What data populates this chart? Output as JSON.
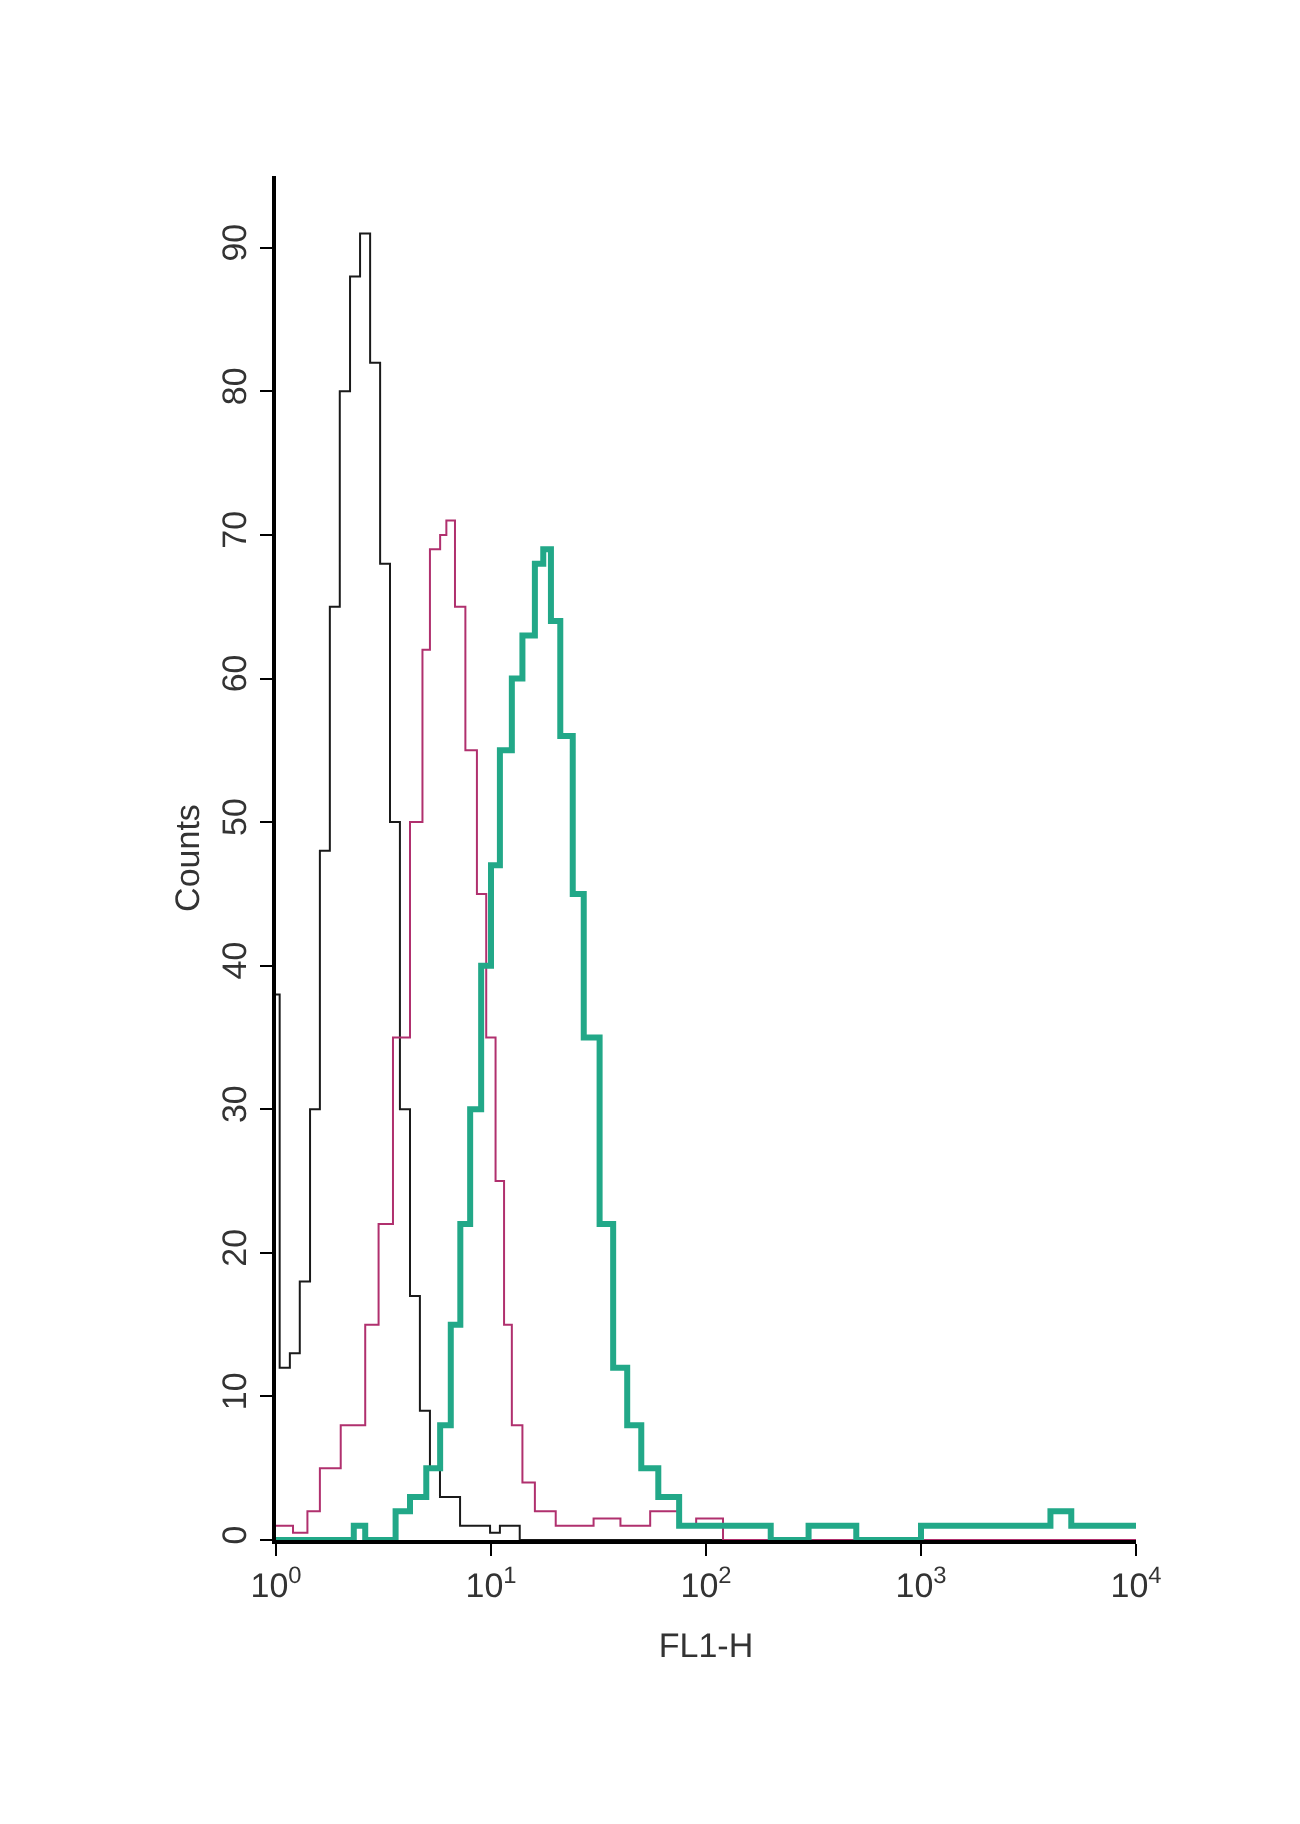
{
  "chart_data": {
    "type": "step",
    "xlabel": "FL1-H",
    "ylabel": "Counts",
    "log": "x",
    "marker": "none",
    "xlim": [
      1,
      10000
    ],
    "ylim": [
      0,
      95
    ],
    "xticks": [
      {
        "value": 1,
        "label": "10$^{0}$"
      },
      {
        "value": 10,
        "label": "10$^{1}$"
      },
      {
        "value": 100,
        "label": "10$^{2}$"
      },
      {
        "value": 1000,
        "label": "10$^{3}$"
      },
      {
        "value": 10000,
        "label": "10$^{4}$"
      }
    ],
    "yticks": [
      0,
      10,
      20,
      30,
      40,
      50,
      60,
      70,
      80,
      90
    ],
    "series": [
      {
        "color": "#1a1a1a",
        "x": [
          1.0,
          1.04,
          1.16,
          1.29,
          1.44,
          1.6,
          1.78,
          1.98,
          2.21,
          2.46,
          2.74,
          3.05,
          3.39,
          3.77,
          4.2,
          4.67,
          5.2,
          5.79,
          7.18,
          9.9,
          11,
          13.6,
          100,
          10000
        ],
        "values": [
          38,
          12,
          13,
          18,
          30,
          48,
          65,
          80,
          88,
          91,
          82,
          68,
          50,
          30,
          17,
          9,
          5,
          3,
          1,
          0.5,
          1,
          0,
          0,
          0
        ]
      },
      {
        "color": "#b0306e",
        "x": [
          1,
          1.2,
          1.4,
          1.6,
          2.0,
          2.6,
          3.0,
          3.5,
          4.2,
          4.8,
          5.2,
          5.8,
          6.2,
          6.8,
          7.6,
          8.6,
          9.5,
          10.5,
          11.5,
          12.5,
          14,
          16,
          20,
          30,
          40,
          55,
          75,
          90,
          120,
          10000
        ],
        "values": [
          1,
          0.5,
          2,
          5,
          8,
          15,
          22,
          35,
          50,
          62,
          69,
          70,
          71,
          65,
          55,
          45,
          35,
          25,
          15,
          8,
          4,
          2,
          1,
          1.5,
          1,
          2,
          1,
          1.5,
          0,
          0
        ]
      },
      {
        "color": "#22a888",
        "x": [
          1,
          1.8,
          2.3,
          2.6,
          3.2,
          3.6,
          4.2,
          5.0,
          5.8,
          6.5,
          7.2,
          8.0,
          9.0,
          10,
          11,
          12.5,
          14,
          16,
          17.5,
          19,
          21,
          24,
          27,
          32,
          37,
          43,
          50,
          60,
          75,
          100,
          150,
          200,
          300,
          500,
          1000,
          2000,
          4000,
          5000,
          10000
        ],
        "values": [
          0,
          0,
          1,
          0,
          0,
          2,
          3,
          5,
          8,
          15,
          22,
          30,
          40,
          47,
          55,
          60,
          63,
          68,
          69,
          64,
          56,
          45,
          35,
          22,
          12,
          8,
          5,
          3,
          1,
          1,
          1,
          0,
          1,
          0,
          1,
          1,
          2,
          1,
          1
        ]
      }
    ]
  }
}
